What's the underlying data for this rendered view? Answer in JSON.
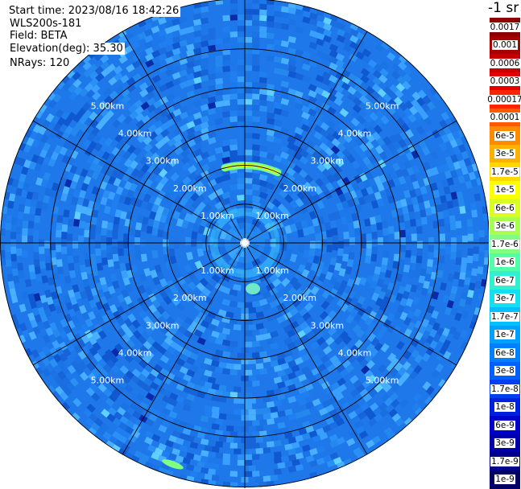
{
  "info": {
    "start_time": "Start time: 2023/08/16 18:42:26",
    "instrument": "WLS200s-181",
    "field": "Field: BETA",
    "elevation": "Elevation(deg): 35.30",
    "nrays": "NRays: 120"
  },
  "plot": {
    "type": "ppi-polar",
    "field": "BETA",
    "elevation_deg": 35.3,
    "nrays": 120,
    "range_rings_km": [
      1.0,
      2.0,
      3.0,
      4.0,
      5.0
    ],
    "max_range_km": 6.3,
    "ring_labels": [
      "1.00km",
      "2.00km",
      "3.00km",
      "4.00km",
      "5.00km"
    ],
    "spoke_interval_deg": 30,
    "features": [
      {
        "name": "arc-north",
        "range_km": 2.0,
        "azimuth_from_deg": 345,
        "azimuth_to_deg": 25,
        "level": "1e-5"
      },
      {
        "name": "ring-near",
        "range_km": 0.8,
        "level": "1.7e-7"
      },
      {
        "name": "patch-south",
        "range_km": 1.2,
        "azimuth_deg": 170,
        "level": "6e-7"
      },
      {
        "name": "patch-far",
        "range_km": 6.0,
        "azimuth_deg": 198,
        "level": "1.7e-6"
      }
    ]
  },
  "colorbar": {
    "unit": "-1 sr",
    "labels": [
      "0.0017",
      "0.001",
      "0.0006",
      "0.0003",
      "0.00017",
      "0.0001",
      "6e-5",
      "3e-5",
      "1.7e-5",
      "1e-5",
      "6e-6",
      "3e-6",
      "1.7e-6",
      "1e-6",
      "6e-7",
      "3e-7",
      "1.7e-7",
      "1e-7",
      "6e-8",
      "3e-8",
      "1.7e-8",
      "1e-8",
      "6e-9",
      "3e-9",
      "1.7e-9",
      "1e-9"
    ],
    "colors": [
      "#8b0000",
      "#a80000",
      "#c60000",
      "#e40000",
      "#ff2400",
      "#ff5a00",
      "#ff8c00",
      "#ffb000",
      "#ffd800",
      "#ffff00",
      "#d8ff20",
      "#a8ff50",
      "#80ff80",
      "#50ffa8",
      "#30f0d0",
      "#10e0f0",
      "#00c0ff",
      "#00a0ff",
      "#0080ff",
      "#0060ff",
      "#0040f0",
      "#0020e0",
      "#0000cc",
      "#0000aa",
      "#00008b",
      "#000066"
    ]
  }
}
